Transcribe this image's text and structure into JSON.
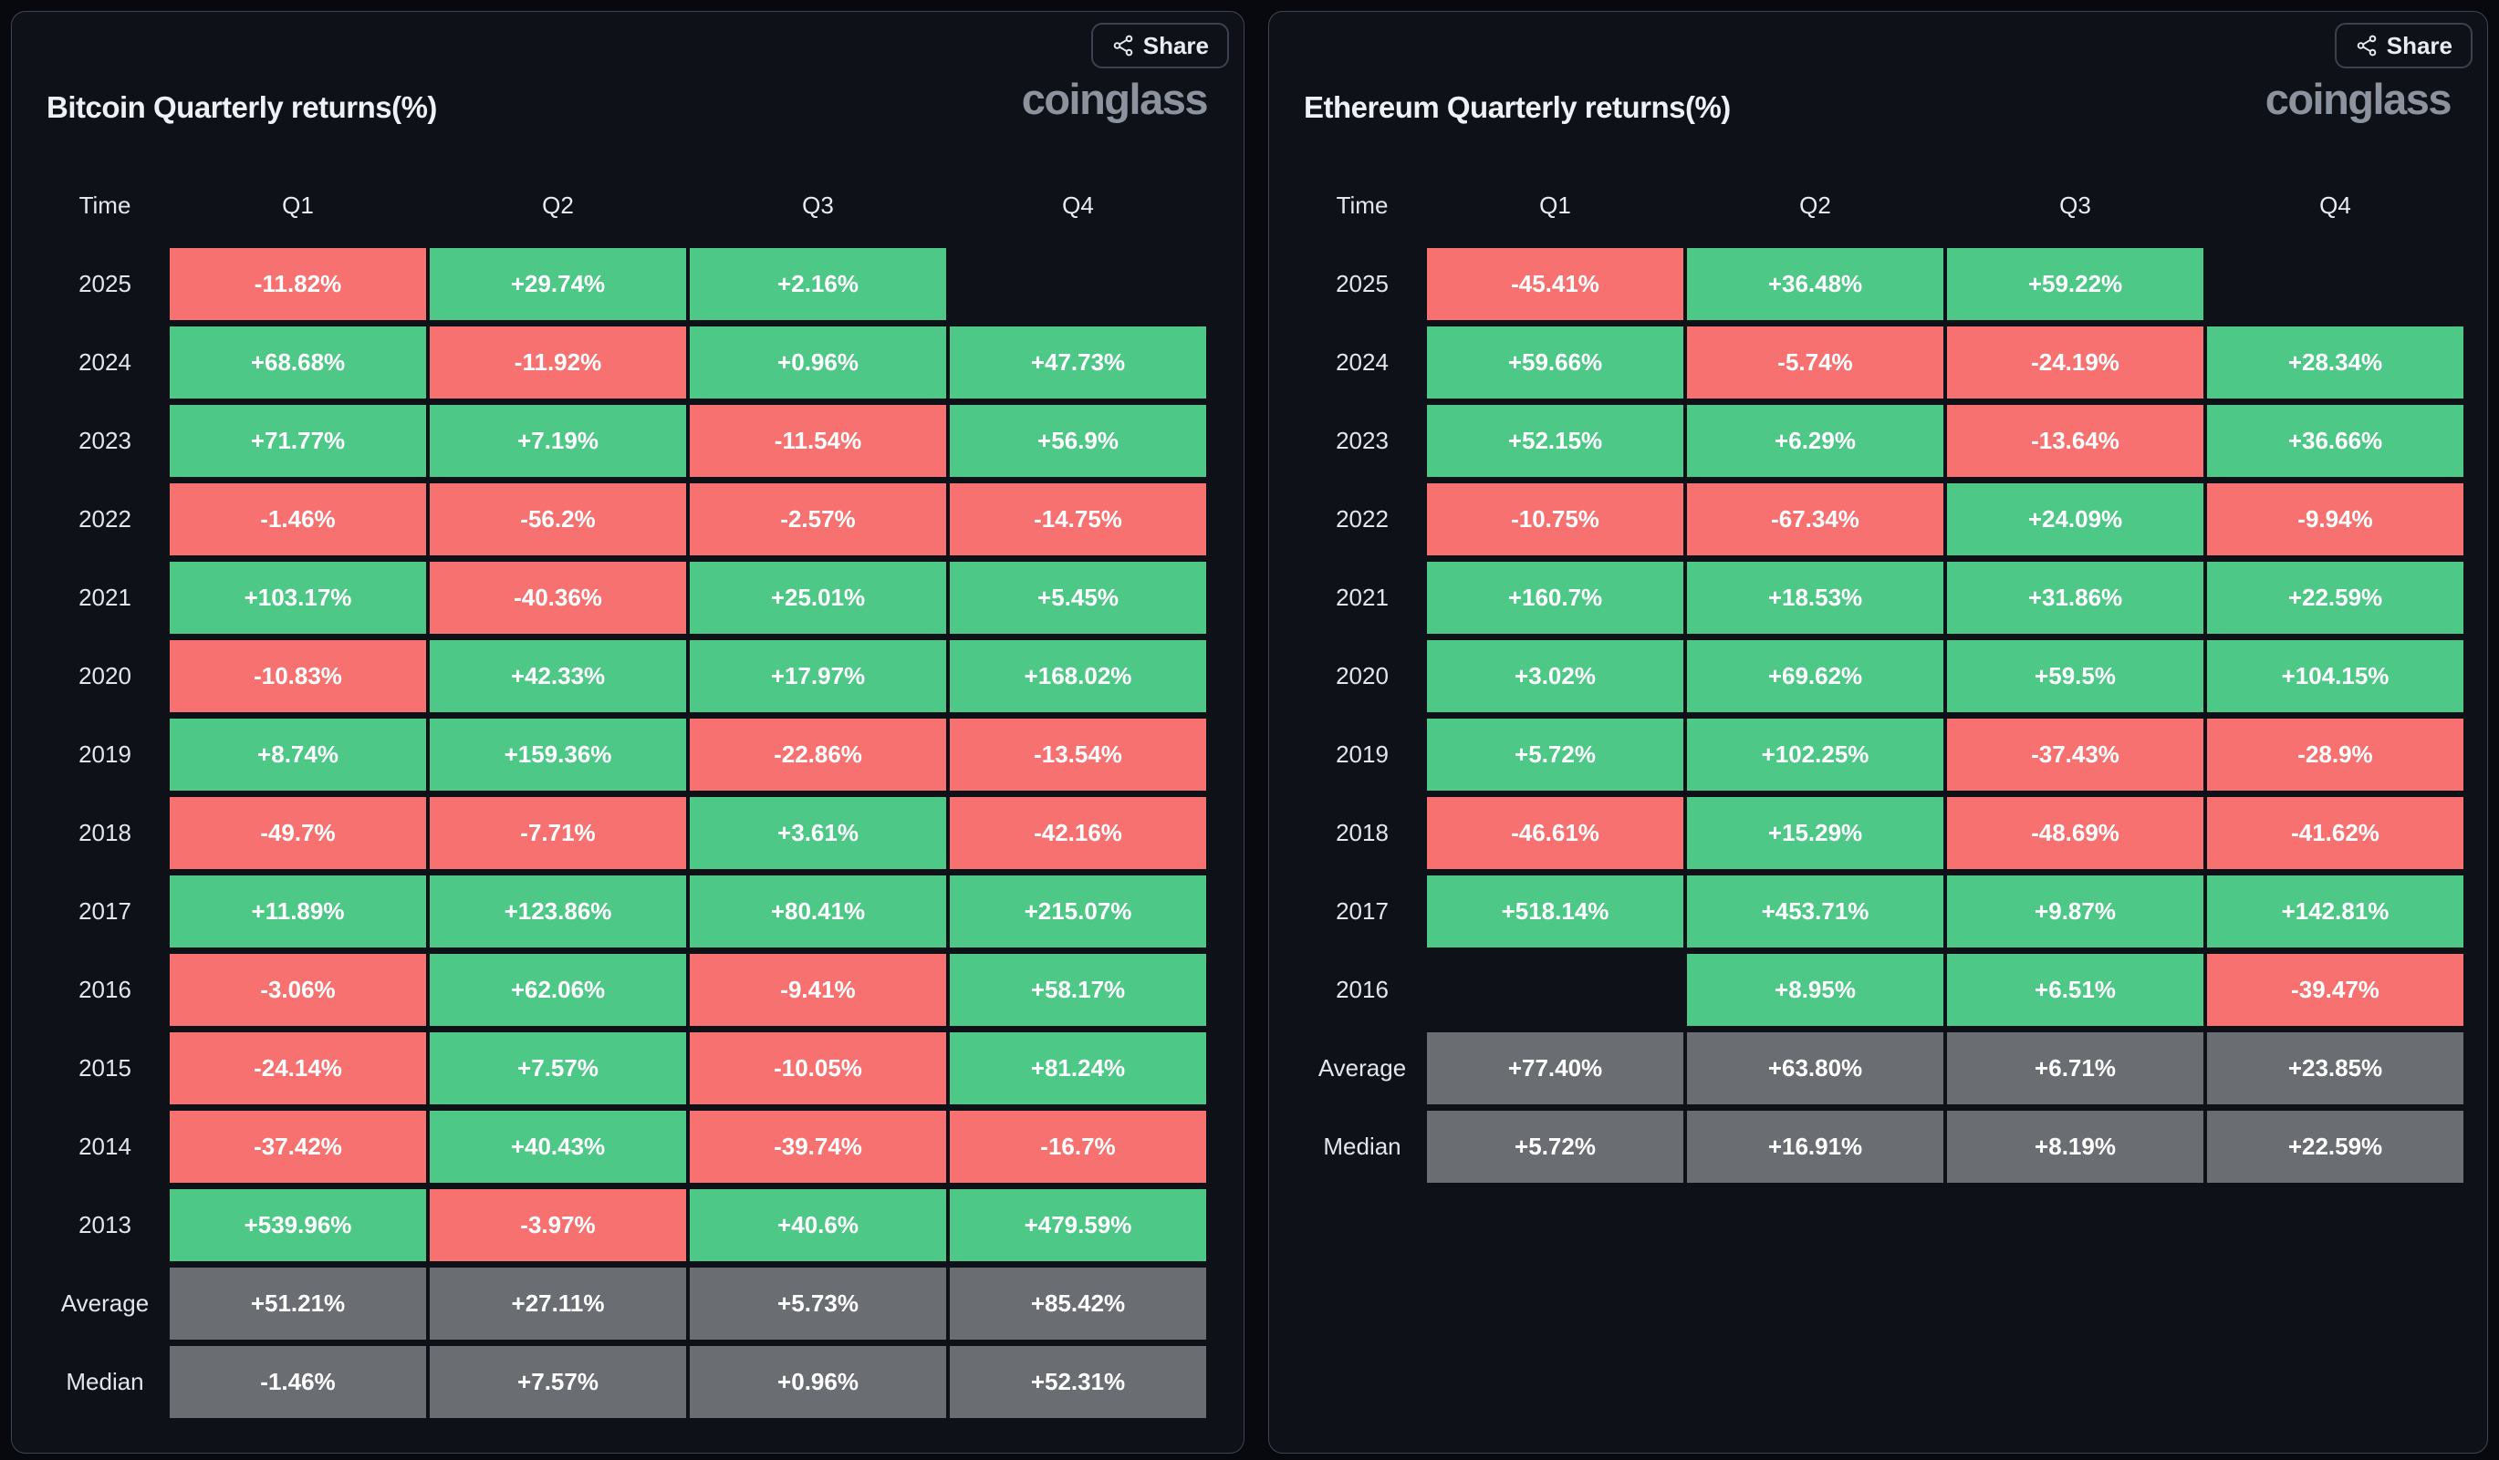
{
  "colors": {
    "page_bg": "#08090e",
    "panel_bg": "#0e1117",
    "panel_border": "#3d4553",
    "positive": "#4dc887",
    "negative": "#f77171",
    "neutral": "#6a6d71",
    "logo_text": "#8d939e",
    "header_text": "#e9edf2",
    "cell_text": "#ffffff"
  },
  "share": {
    "label": "Share",
    "icon": "share-nodes-icon"
  },
  "logo": {
    "text": "coinglass"
  },
  "chart_data": [
    {
      "type": "heatmap-table",
      "title": "Bitcoin Quarterly returns(%)",
      "columns": [
        "Time",
        "Q1",
        "Q2",
        "Q3",
        "Q4"
      ],
      "rows": [
        {
          "label": "2025",
          "kind": "year",
          "cells": [
            {
              "value": "-11.82%",
              "status": "negative"
            },
            {
              "value": "+29.74%",
              "status": "positive"
            },
            {
              "value": "+2.16%",
              "status": "positive"
            },
            {
              "value": "",
              "status": "empty"
            }
          ]
        },
        {
          "label": "2024",
          "kind": "year",
          "cells": [
            {
              "value": "+68.68%",
              "status": "positive"
            },
            {
              "value": "-11.92%",
              "status": "negative"
            },
            {
              "value": "+0.96%",
              "status": "positive"
            },
            {
              "value": "+47.73%",
              "status": "positive"
            }
          ]
        },
        {
          "label": "2023",
          "kind": "year",
          "cells": [
            {
              "value": "+71.77%",
              "status": "positive"
            },
            {
              "value": "+7.19%",
              "status": "positive"
            },
            {
              "value": "-11.54%",
              "status": "negative"
            },
            {
              "value": "+56.9%",
              "status": "positive"
            }
          ]
        },
        {
          "label": "2022",
          "kind": "year",
          "cells": [
            {
              "value": "-1.46%",
              "status": "negative"
            },
            {
              "value": "-56.2%",
              "status": "negative"
            },
            {
              "value": "-2.57%",
              "status": "negative"
            },
            {
              "value": "-14.75%",
              "status": "negative"
            }
          ]
        },
        {
          "label": "2021",
          "kind": "year",
          "cells": [
            {
              "value": "+103.17%",
              "status": "positive"
            },
            {
              "value": "-40.36%",
              "status": "negative"
            },
            {
              "value": "+25.01%",
              "status": "positive"
            },
            {
              "value": "+5.45%",
              "status": "positive"
            }
          ]
        },
        {
          "label": "2020",
          "kind": "year",
          "cells": [
            {
              "value": "-10.83%",
              "status": "negative"
            },
            {
              "value": "+42.33%",
              "status": "positive"
            },
            {
              "value": "+17.97%",
              "status": "positive"
            },
            {
              "value": "+168.02%",
              "status": "positive"
            }
          ]
        },
        {
          "label": "2019",
          "kind": "year",
          "cells": [
            {
              "value": "+8.74%",
              "status": "positive"
            },
            {
              "value": "+159.36%",
              "status": "positive"
            },
            {
              "value": "-22.86%",
              "status": "negative"
            },
            {
              "value": "-13.54%",
              "status": "negative"
            }
          ]
        },
        {
          "label": "2018",
          "kind": "year",
          "cells": [
            {
              "value": "-49.7%",
              "status": "negative"
            },
            {
              "value": "-7.71%",
              "status": "negative"
            },
            {
              "value": "+3.61%",
              "status": "positive"
            },
            {
              "value": "-42.16%",
              "status": "negative"
            }
          ]
        },
        {
          "label": "2017",
          "kind": "year",
          "cells": [
            {
              "value": "+11.89%",
              "status": "positive"
            },
            {
              "value": "+123.86%",
              "status": "positive"
            },
            {
              "value": "+80.41%",
              "status": "positive"
            },
            {
              "value": "+215.07%",
              "status": "positive"
            }
          ]
        },
        {
          "label": "2016",
          "kind": "year",
          "cells": [
            {
              "value": "-3.06%",
              "status": "negative"
            },
            {
              "value": "+62.06%",
              "status": "positive"
            },
            {
              "value": "-9.41%",
              "status": "negative"
            },
            {
              "value": "+58.17%",
              "status": "positive"
            }
          ]
        },
        {
          "label": "2015",
          "kind": "year",
          "cells": [
            {
              "value": "-24.14%",
              "status": "negative"
            },
            {
              "value": "+7.57%",
              "status": "positive"
            },
            {
              "value": "-10.05%",
              "status": "negative"
            },
            {
              "value": "+81.24%",
              "status": "positive"
            }
          ]
        },
        {
          "label": "2014",
          "kind": "year",
          "cells": [
            {
              "value": "-37.42%",
              "status": "negative"
            },
            {
              "value": "+40.43%",
              "status": "positive"
            },
            {
              "value": "-39.74%",
              "status": "negative"
            },
            {
              "value": "-16.7%",
              "status": "negative"
            }
          ]
        },
        {
          "label": "2013",
          "kind": "year",
          "cells": [
            {
              "value": "+539.96%",
              "status": "positive"
            },
            {
              "value": "-3.97%",
              "status": "negative"
            },
            {
              "value": "+40.6%",
              "status": "positive"
            },
            {
              "value": "+479.59%",
              "status": "positive"
            }
          ]
        },
        {
          "label": "Average",
          "kind": "summary",
          "cells": [
            {
              "value": "+51.21%",
              "status": "summary"
            },
            {
              "value": "+27.11%",
              "status": "summary"
            },
            {
              "value": "+5.73%",
              "status": "summary"
            },
            {
              "value": "+85.42%",
              "status": "summary"
            }
          ]
        },
        {
          "label": "Median",
          "kind": "summary",
          "cells": [
            {
              "value": "-1.46%",
              "status": "summary"
            },
            {
              "value": "+7.57%",
              "status": "summary"
            },
            {
              "value": "+0.96%",
              "status": "summary"
            },
            {
              "value": "+52.31%",
              "status": "summary"
            }
          ]
        }
      ]
    },
    {
      "type": "heatmap-table",
      "title": "Ethereum Quarterly returns(%)",
      "columns": [
        "Time",
        "Q1",
        "Q2",
        "Q3",
        "Q4"
      ],
      "rows": [
        {
          "label": "2025",
          "kind": "year",
          "cells": [
            {
              "value": "-45.41%",
              "status": "negative"
            },
            {
              "value": "+36.48%",
              "status": "positive"
            },
            {
              "value": "+59.22%",
              "status": "positive"
            },
            {
              "value": "",
              "status": "empty"
            }
          ]
        },
        {
          "label": "2024",
          "kind": "year",
          "cells": [
            {
              "value": "+59.66%",
              "status": "positive"
            },
            {
              "value": "-5.74%",
              "status": "negative"
            },
            {
              "value": "-24.19%",
              "status": "negative"
            },
            {
              "value": "+28.34%",
              "status": "positive"
            }
          ]
        },
        {
          "label": "2023",
          "kind": "year",
          "cells": [
            {
              "value": "+52.15%",
              "status": "positive"
            },
            {
              "value": "+6.29%",
              "status": "positive"
            },
            {
              "value": "-13.64%",
              "status": "negative"
            },
            {
              "value": "+36.66%",
              "status": "positive"
            }
          ]
        },
        {
          "label": "2022",
          "kind": "year",
          "cells": [
            {
              "value": "-10.75%",
              "status": "negative"
            },
            {
              "value": "-67.34%",
              "status": "negative"
            },
            {
              "value": "+24.09%",
              "status": "positive"
            },
            {
              "value": "-9.94%",
              "status": "negative"
            }
          ]
        },
        {
          "label": "2021",
          "kind": "year",
          "cells": [
            {
              "value": "+160.7%",
              "status": "positive"
            },
            {
              "value": "+18.53%",
              "status": "positive"
            },
            {
              "value": "+31.86%",
              "status": "positive"
            },
            {
              "value": "+22.59%",
              "status": "positive"
            }
          ]
        },
        {
          "label": "2020",
          "kind": "year",
          "cells": [
            {
              "value": "+3.02%",
              "status": "positive"
            },
            {
              "value": "+69.62%",
              "status": "positive"
            },
            {
              "value": "+59.5%",
              "status": "positive"
            },
            {
              "value": "+104.15%",
              "status": "positive"
            }
          ]
        },
        {
          "label": "2019",
          "kind": "year",
          "cells": [
            {
              "value": "+5.72%",
              "status": "positive"
            },
            {
              "value": "+102.25%",
              "status": "positive"
            },
            {
              "value": "-37.43%",
              "status": "negative"
            },
            {
              "value": "-28.9%",
              "status": "negative"
            }
          ]
        },
        {
          "label": "2018",
          "kind": "year",
          "cells": [
            {
              "value": "-46.61%",
              "status": "negative"
            },
            {
              "value": "+15.29%",
              "status": "positive"
            },
            {
              "value": "-48.69%",
              "status": "negative"
            },
            {
              "value": "-41.62%",
              "status": "negative"
            }
          ]
        },
        {
          "label": "2017",
          "kind": "year",
          "cells": [
            {
              "value": "+518.14%",
              "status": "positive"
            },
            {
              "value": "+453.71%",
              "status": "positive"
            },
            {
              "value": "+9.87%",
              "status": "positive"
            },
            {
              "value": "+142.81%",
              "status": "positive"
            }
          ]
        },
        {
          "label": "2016",
          "kind": "year",
          "cells": [
            {
              "value": "",
              "status": "empty"
            },
            {
              "value": "+8.95%",
              "status": "positive"
            },
            {
              "value": "+6.51%",
              "status": "positive"
            },
            {
              "value": "-39.47%",
              "status": "negative"
            }
          ]
        },
        {
          "label": "Average",
          "kind": "summary",
          "cells": [
            {
              "value": "+77.40%",
              "status": "summary"
            },
            {
              "value": "+63.80%",
              "status": "summary"
            },
            {
              "value": "+6.71%",
              "status": "summary"
            },
            {
              "value": "+23.85%",
              "status": "summary"
            }
          ]
        },
        {
          "label": "Median",
          "kind": "summary",
          "cells": [
            {
              "value": "+5.72%",
              "status": "summary"
            },
            {
              "value": "+16.91%",
              "status": "summary"
            },
            {
              "value": "+8.19%",
              "status": "summary"
            },
            {
              "value": "+22.59%",
              "status": "summary"
            }
          ]
        }
      ]
    }
  ]
}
